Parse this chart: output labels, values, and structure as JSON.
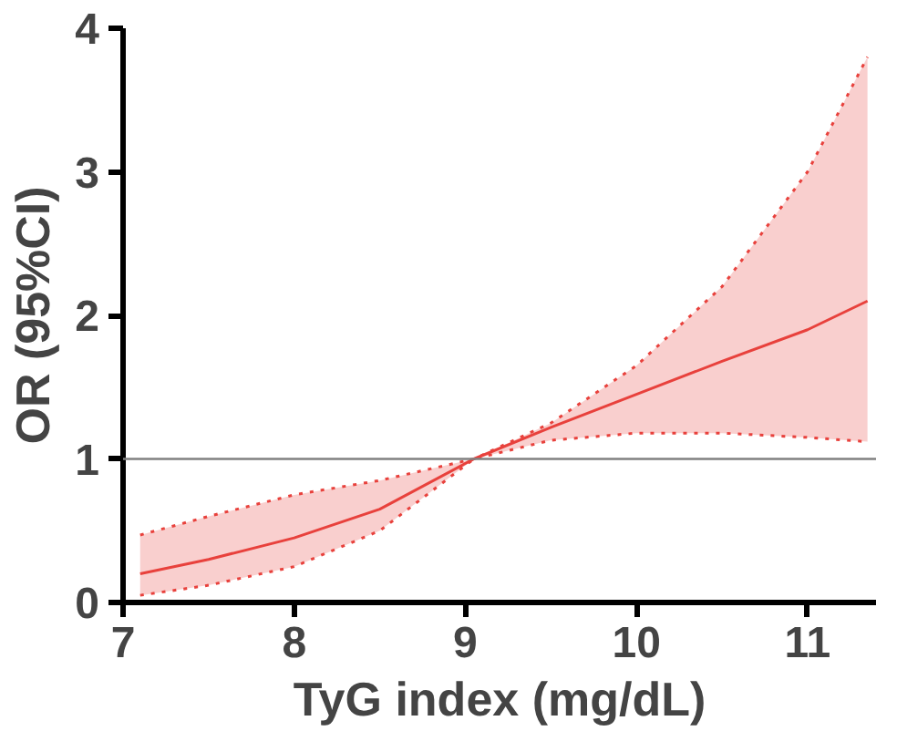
{
  "chart_data": {
    "type": "line",
    "xlabel": "TyG index (mg/dL)",
    "ylabel": "OR (95%CI)",
    "xlim": [
      7,
      11.4
    ],
    "ylim": [
      0,
      4
    ],
    "xticks": [
      7,
      8,
      9,
      10,
      11
    ],
    "yticks": [
      0,
      1,
      2,
      3,
      4
    ],
    "grid": false,
    "marker": "none",
    "line_style": "solid",
    "ref_lines": [
      {
        "axis": "y",
        "value": 1,
        "color": "#808080"
      }
    ],
    "series": [
      {
        "color": "#e8413c",
        "x": [
          7.1,
          7.5,
          8,
          8.5,
          9.05,
          9.5,
          10,
          10.5,
          11,
          11.35
        ],
        "values": [
          0.2,
          0.3,
          0.45,
          0.65,
          1.0,
          1.22,
          1.45,
          1.68,
          1.9,
          2.1
        ],
        "lower": [
          0.05,
          0.12,
          0.25,
          0.5,
          1.0,
          1.13,
          1.18,
          1.18,
          1.15,
          1.12
        ],
        "upper": [
          0.47,
          0.6,
          0.75,
          0.85,
          1.0,
          1.25,
          1.65,
          2.2,
          3.0,
          3.8
        ]
      },
      {
        "color": "#e8413c",
        "line_style": "dotted",
        "x": [
          7.1,
          7.5,
          8,
          8.5,
          9.05,
          9.5,
          10,
          10.5,
          11,
          11.35
        ],
        "values": [
          0.05,
          0.12,
          0.25,
          0.5,
          1.0,
          1.13,
          1.18,
          1.18,
          1.15,
          1.12
        ]
      },
      {
        "color": "#e8413c",
        "line_style": "dotted",
        "x": [
          7.1,
          7.5,
          8,
          8.5,
          9.05,
          9.5,
          10,
          10.5,
          11,
          11.35
        ],
        "values": [
          0.47,
          0.6,
          0.75,
          0.85,
          1.0,
          1.25,
          1.65,
          2.2,
          3.0,
          3.8
        ]
      }
    ]
  }
}
